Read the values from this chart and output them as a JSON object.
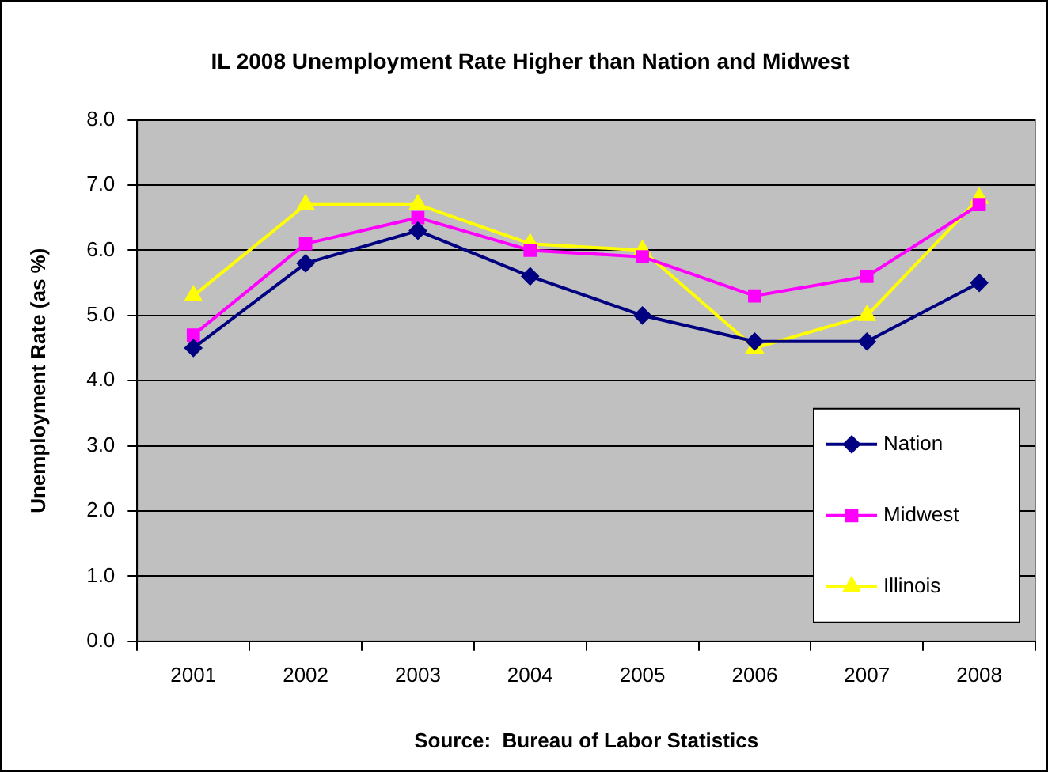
{
  "chart_data": {
    "type": "line",
    "title": "IL 2008 Unemployment Rate Higher than Nation and Midwest",
    "ylabel": "Unemployment Rate (as %)",
    "annotations": [
      "Source:  Bureau of Labor Statistics"
    ],
    "categories": [
      "2001",
      "2002",
      "2003",
      "2004",
      "2005",
      "2006",
      "2007",
      "2008"
    ],
    "series": [
      {
        "name": "Nation",
        "color": "#000080",
        "marker": "diamond",
        "values": [
          4.5,
          5.8,
          6.3,
          5.6,
          5.0,
          4.6,
          4.6,
          5.5
        ]
      },
      {
        "name": "Midwest",
        "color": "#ff00ff",
        "marker": "square",
        "values": [
          4.7,
          6.1,
          6.5,
          6.0,
          5.9,
          5.3,
          5.6,
          6.7
        ]
      },
      {
        "name": "Illinois",
        "color": "#ffff00",
        "marker": "triangle",
        "values": [
          5.3,
          6.7,
          6.7,
          6.1,
          6.0,
          4.5,
          5.0,
          6.8
        ]
      }
    ],
    "ylim": [
      0,
      8
    ],
    "yticks": [
      {
        "value": 0,
        "label": "0.0"
      },
      {
        "value": 1,
        "label": "1.0"
      },
      {
        "value": 2,
        "label": "2.0"
      },
      {
        "value": 3,
        "label": "3.0"
      },
      {
        "value": 4,
        "label": "4.0"
      },
      {
        "value": 5,
        "label": "5.0"
      },
      {
        "value": 6,
        "label": "6.0"
      },
      {
        "value": 7,
        "label": "7.0"
      },
      {
        "value": 8,
        "label": "8.0"
      }
    ],
    "grid": "y",
    "legend": "bottom right",
    "line_style": "solid"
  }
}
